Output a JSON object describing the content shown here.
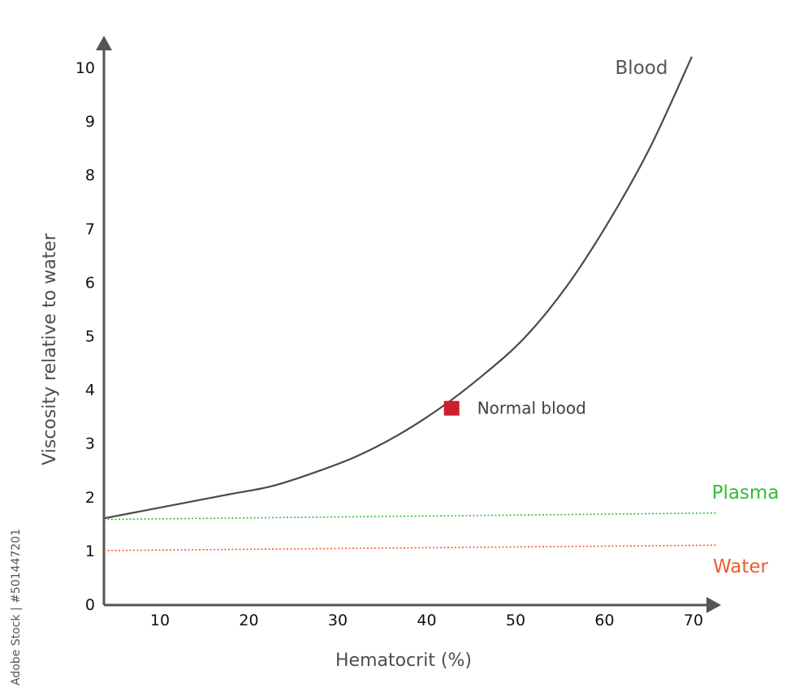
{
  "chart_data": {
    "type": "line",
    "xlabel": "Hematocrit (%)",
    "ylabel": "Viscosity relative to water",
    "xticks": [
      10,
      20,
      30,
      40,
      50,
      60,
      70
    ],
    "yticks": [
      0,
      1,
      2,
      3,
      4,
      5,
      6,
      7,
      8,
      9,
      10
    ],
    "xlim": [
      0,
      72
    ],
    "ylim": [
      0,
      10.5
    ],
    "grid": false,
    "legend": "inline labels at right end of each series",
    "series": [
      {
        "name": "Blood",
        "style": "solid",
        "color": "#4a4a4a",
        "x": [
          0,
          5,
          10,
          15,
          20,
          25,
          30,
          35,
          40,
          45,
          50,
          55,
          60,
          65,
          70
        ],
        "y": [
          1.6,
          1.75,
          1.9,
          2.05,
          2.2,
          2.45,
          2.75,
          3.15,
          3.65,
          4.25,
          4.95,
          5.9,
          7.1,
          8.5,
          10.2
        ]
      },
      {
        "name": "Plasma",
        "style": "dotted",
        "color": "#33bb33",
        "x": [
          0,
          72
        ],
        "y": [
          1.58,
          1.7
        ]
      },
      {
        "name": "Water",
        "style": "dotted",
        "color": "#f25a2a",
        "x": [
          0,
          72
        ],
        "y": [
          1.0,
          1.1
        ]
      }
    ],
    "annotations": [
      {
        "label": "Normal blood",
        "x": 40,
        "y": 3.65,
        "marker": "square",
        "color": "#cc1f2d"
      }
    ]
  },
  "credit_text": "Adobe Stock | #501447201"
}
